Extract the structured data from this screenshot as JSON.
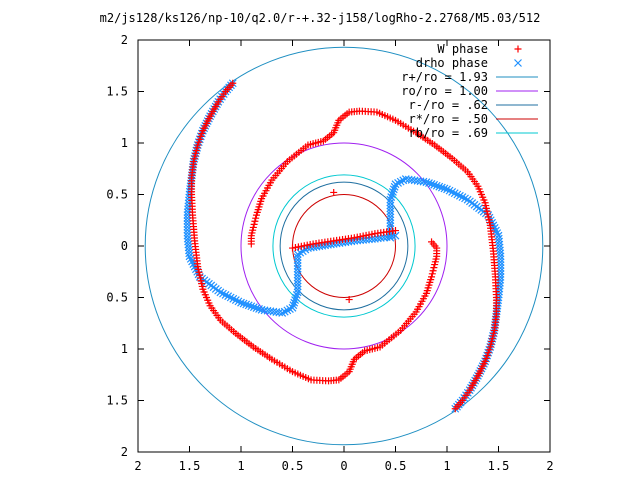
{
  "chart_data": {
    "type": "scatter",
    "title": "m2/js128/ks126/np-10/q2.0/r-+.32-j158/logRho-2.2768/M5.03/512",
    "xlabel": "",
    "ylabel": "",
    "xlim": [
      -2,
      2
    ],
    "ylim": [
      -2,
      2
    ],
    "grid": false,
    "legend_position": "top-right",
    "x_ticks": [
      -2,
      -1.5,
      -1,
      -0.5,
      0,
      0.5,
      1,
      1.5,
      2
    ],
    "x_tick_labels": [
      "2",
      "1.5",
      "1",
      "0.5",
      "0",
      "0.5",
      "1",
      "1.5",
      "2"
    ],
    "y_ticks": [
      2,
      1.5,
      1,
      0.5,
      0,
      -0.5,
      -1,
      -1.5,
      -2
    ],
    "y_tick_labels": [
      "2",
      "1.5",
      "1",
      "0.5",
      "0",
      "0.5",
      "1",
      "1.5",
      "2"
    ],
    "series": [
      {
        "name": "W phase",
        "marker": "plus",
        "color": "#ff0000",
        "arms": [
          [
            [
              -1.08,
              1.58
            ],
            [
              -1.15,
              1.5
            ],
            [
              -1.22,
              1.4
            ],
            [
              -1.3,
              1.26
            ],
            [
              -1.37,
              1.12
            ],
            [
              -1.42,
              0.98
            ],
            [
              -1.46,
              0.82
            ],
            [
              -1.48,
              0.66
            ],
            [
              -1.48,
              0.5
            ],
            [
              -1.47,
              0.3
            ],
            [
              -1.45,
              0.05
            ],
            [
              -1.42,
              -0.2
            ],
            [
              -1.37,
              -0.42
            ],
            [
              -1.3,
              -0.58
            ],
            [
              -1.2,
              -0.72
            ],
            [
              -1.05,
              -0.85
            ],
            [
              -0.88,
              -0.98
            ],
            [
              -0.7,
              -1.1
            ],
            [
              -0.5,
              -1.22
            ],
            [
              -0.32,
              -1.3
            ],
            [
              -0.15,
              -1.31
            ],
            [
              -0.05,
              -1.3
            ],
            [
              0.05,
              -1.22
            ],
            [
              0.1,
              -1.1
            ],
            [
              0.2,
              -1.02
            ],
            [
              0.35,
              -0.98
            ],
            [
              0.55,
              -0.82
            ],
            [
              0.7,
              -0.64
            ],
            [
              0.8,
              -0.46
            ],
            [
              0.85,
              -0.3
            ],
            [
              0.88,
              -0.18
            ],
            [
              0.9,
              -0.1
            ],
            [
              0.9,
              -0.02
            ],
            [
              0.85,
              0.04
            ]
          ],
          [
            [
              1.08,
              -1.58
            ],
            [
              1.15,
              -1.5
            ],
            [
              1.22,
              -1.4
            ],
            [
              1.3,
              -1.26
            ],
            [
              1.37,
              -1.12
            ],
            [
              1.42,
              -0.98
            ],
            [
              1.46,
              -0.82
            ],
            [
              1.48,
              -0.66
            ],
            [
              1.48,
              -0.5
            ],
            [
              1.47,
              -0.3
            ],
            [
              1.45,
              -0.05
            ],
            [
              1.42,
              0.2
            ],
            [
              1.37,
              0.42
            ],
            [
              1.3,
              0.58
            ],
            [
              1.2,
              0.72
            ],
            [
              1.05,
              0.85
            ],
            [
              0.88,
              0.98
            ],
            [
              0.7,
              1.1
            ],
            [
              0.5,
              1.22
            ],
            [
              0.32,
              1.3
            ],
            [
              0.15,
              1.31
            ],
            [
              0.05,
              1.3
            ],
            [
              -0.05,
              1.22
            ],
            [
              -0.1,
              1.1
            ],
            [
              -0.2,
              1.02
            ],
            [
              -0.35,
              0.98
            ],
            [
              -0.55,
              0.82
            ],
            [
              -0.7,
              0.64
            ],
            [
              -0.8,
              0.46
            ],
            [
              -0.85,
              0.3
            ],
            [
              -0.88,
              0.18
            ],
            [
              -0.9,
              0.1
            ],
            [
              -0.9,
              0.02
            ]
          ],
          [
            [
              -0.5,
              -0.02
            ],
            [
              -0.3,
              0.02
            ],
            [
              -0.1,
              0.05
            ],
            [
              0.1,
              0.08
            ],
            [
              0.3,
              0.12
            ],
            [
              0.5,
              0.15
            ]
          ],
          [
            [
              -0.1,
              0.52
            ],
            [
              0.05,
              -0.52
            ]
          ]
        ]
      },
      {
        "name": "drho phase",
        "marker": "cross",
        "color": "#1e90ff",
        "arms": [
          [
            [
              -1.08,
              1.58
            ],
            [
              -1.15,
              1.5
            ],
            [
              -1.22,
              1.4
            ],
            [
              -1.3,
              1.26
            ],
            [
              -1.37,
              1.12
            ],
            [
              -1.42,
              0.98
            ],
            [
              -1.46,
              0.82
            ],
            [
              -1.48,
              0.66
            ],
            [
              -1.5,
              0.5
            ],
            [
              -1.52,
              0.3
            ],
            [
              -1.52,
              0.1
            ],
            [
              -1.5,
              -0.1
            ],
            [
              -1.4,
              -0.3
            ],
            [
              -1.2,
              -0.45
            ],
            [
              -1.0,
              -0.55
            ],
            [
              -0.8,
              -0.62
            ],
            [
              -0.6,
              -0.65
            ],
            [
              -0.5,
              -0.6
            ],
            [
              -0.45,
              -0.45
            ],
            [
              -0.45,
              -0.25
            ],
            [
              -0.45,
              -0.08
            ],
            [
              -0.35,
              -0.02
            ],
            [
              -0.1,
              0.02
            ],
            [
              0.1,
              0.05
            ],
            [
              0.3,
              0.07
            ],
            [
              0.5,
              0.1
            ]
          ],
          [
            [
              1.08,
              -1.58
            ],
            [
              1.15,
              -1.5
            ],
            [
              1.22,
              -1.4
            ],
            [
              1.3,
              -1.26
            ],
            [
              1.37,
              -1.12
            ],
            [
              1.42,
              -0.98
            ],
            [
              1.46,
              -0.82
            ],
            [
              1.48,
              -0.66
            ],
            [
              1.5,
              -0.5
            ],
            [
              1.52,
              -0.3
            ],
            [
              1.52,
              -0.1
            ],
            [
              1.5,
              0.1
            ],
            [
              1.4,
              0.3
            ],
            [
              1.2,
              0.45
            ],
            [
              1.0,
              0.55
            ],
            [
              0.8,
              0.62
            ],
            [
              0.6,
              0.65
            ],
            [
              0.5,
              0.6
            ],
            [
              0.45,
              0.45
            ],
            [
              0.45,
              0.25
            ],
            [
              0.45,
              0.08
            ]
          ]
        ]
      }
    ],
    "circles": [
      {
        "name": "r+/ro = 1.93",
        "radius": 1.93,
        "color": "#1f8fc2"
      },
      {
        "name": "ro/ro = 1.00",
        "radius": 1.0,
        "color": "#a020f0"
      },
      {
        "name": "r-/ro = .62",
        "radius": 0.62,
        "color": "#1f6fa0"
      },
      {
        "name": "r*/ro = .50",
        "radius": 0.5,
        "color": "#cc0000"
      },
      {
        "name": "rb/ro = .69",
        "radius": 0.69,
        "color": "#00c8d0"
      }
    ]
  }
}
